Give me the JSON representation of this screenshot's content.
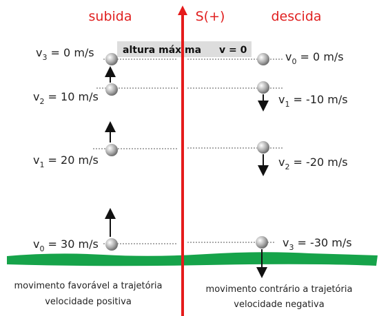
{
  "header": {
    "left": "subida",
    "axis": "S(+)",
    "right": "descida"
  },
  "banner": {
    "text": "altura máxima",
    "condition": "v = 0"
  },
  "left_labels": [
    {
      "symbol": "v",
      "sub": "3",
      "rest": " = 0 m/s"
    },
    {
      "symbol": "v",
      "sub": "2",
      "rest": " = 10 m/s"
    },
    {
      "symbol": "v",
      "sub": "1",
      "rest": " = 20 m/s"
    },
    {
      "symbol": "v",
      "sub": "0",
      "rest": " = 30 m/s"
    }
  ],
  "right_labels": [
    {
      "symbol": "v",
      "sub": "0",
      "rest": " = 0 m/s"
    },
    {
      "symbol": "v",
      "sub": "1",
      "rest": " = -10 m/s"
    },
    {
      "symbol": "v",
      "sub": "2",
      "rest": " = -20 m/s"
    },
    {
      "symbol": "v",
      "sub": "3",
      "rest": " = -30 m/s"
    }
  ],
  "footer": {
    "left": [
      "movimento favorável a trajetória",
      "velocidade positiva"
    ],
    "right": [
      "movimento contrário a trajetória",
      "velocidade negativa"
    ]
  }
}
